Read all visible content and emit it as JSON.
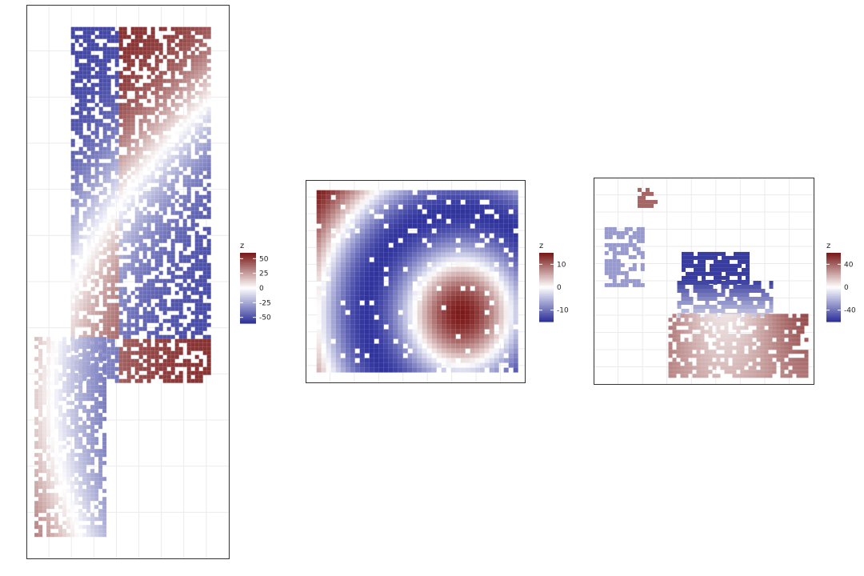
{
  "colors": {
    "low": "#31359b",
    "mid": "#ffffff",
    "high": "#7a1a1a",
    "grid": "#ebebeb",
    "panel_border": "#333333"
  },
  "chart_data": [
    {
      "type": "heatmap",
      "panel": "left",
      "legend_title": "z",
      "legend_ticks": [
        "50",
        "25",
        "0",
        "-25",
        "-50"
      ],
      "legend_tick_values": [
        50,
        25,
        0,
        -25,
        -50
      ],
      "zlim": [
        -60,
        60
      ],
      "grid": true,
      "axis_labels_shown": false,
      "regions": [
        {
          "x": [
            0.22,
            0.9
          ],
          "y": [
            0.04,
            0.68
          ],
          "zfield": "diag",
          "scale": 55,
          "density": 0.7
        },
        {
          "x": [
            0.04,
            0.38
          ],
          "y": [
            0.6,
            0.96
          ],
          "zfield": "diag",
          "scale": 60,
          "density": 0.7
        }
      ]
    },
    {
      "type": "heatmap",
      "panel": "middle",
      "legend_title": "z",
      "legend_ticks": [
        "10",
        "0",
        "-10"
      ],
      "legend_tick_values": [
        10,
        0,
        -10
      ],
      "zlim": [
        -15,
        15
      ],
      "grid": true,
      "axis_labels_shown": false,
      "regions": [
        {
          "x": [
            0.05,
            0.95
          ],
          "y": [
            0.05,
            0.95
          ],
          "zfield": "blob",
          "scale": 15,
          "density": 0.93
        }
      ]
    },
    {
      "type": "heatmap",
      "panel": "right",
      "legend_title": "z",
      "legend_ticks": [
        "40",
        "0",
        "-40"
      ],
      "legend_tick_values": [
        40,
        0,
        -40
      ],
      "zlim": [
        -60,
        60
      ],
      "grid": true,
      "axis_labels_shown": false,
      "regions": [
        {
          "x": [
            0.2,
            0.28
          ],
          "y": [
            0.05,
            0.14
          ],
          "zfield": "const",
          "value": 40,
          "density": 0.6
        },
        {
          "x": [
            0.05,
            0.22
          ],
          "y": [
            0.24,
            0.52
          ],
          "zfield": "const",
          "value": -30,
          "density": 0.6
        },
        {
          "x": [
            0.4,
            0.7
          ],
          "y": [
            0.36,
            0.5
          ],
          "zfield": "const",
          "value": -58,
          "density": 0.85
        },
        {
          "x": [
            0.38,
            0.8
          ],
          "y": [
            0.5,
            0.68
          ],
          "zfield": "grad",
          "scale": 55,
          "density": 0.75
        },
        {
          "x": [
            0.34,
            0.96
          ],
          "y": [
            0.66,
            0.96
          ],
          "zfield": "wave",
          "scale": 50,
          "density": 0.75
        }
      ]
    }
  ]
}
